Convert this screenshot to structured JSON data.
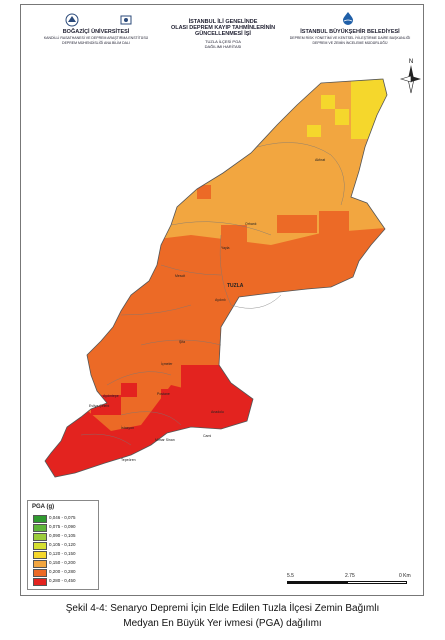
{
  "header": {
    "left_title": "BOĞAZİÇİ ÜNİVERSİTESİ",
    "left_sub1": "KANDİLLİ RASATHANESİ VE DEPREM ARAŞTIRMA ENSTİTÜSÜ",
    "left_sub2": "DEPREM MÜHENDİSLİĞİ ANA BİLİM DALI",
    "center_title1": "İSTANBUL İLİ GENELİNDE",
    "center_title2": "OLASI DEPREM KAYIP TAHMİNLERİNİN",
    "center_title3": "GÜNCELLENMESİ İŞİ",
    "center_sub1": "TUZLA İLÇESİ PGA",
    "center_sub2": "DAĞILIMI HARİTASI",
    "right_title": "İSTANBUL BÜYÜKŞEHİR BELEDİYESİ",
    "right_sub1": "DEPREM RİSK YÖNETİMİ VE KENTSEL İYİLEŞTİRME DAİRE BAŞKANLIĞI",
    "right_sub2": "DEPREM VE ZEMİN İNCELEME MÜDÜRLÜĞÜ"
  },
  "map": {
    "district_label": "TUZLA",
    "places": [
      "Akfırat",
      "Orhanlı",
      "Yayla",
      "Mescit",
      "Aydınlı",
      "Şifa",
      "İçmeler",
      "Aydıntepe",
      "Postane",
      "Evliya Çelebi",
      "İstasyon",
      "Mimar Sinan",
      "Cami",
      "Anadolu",
      "Tepeören"
    ]
  },
  "legend": {
    "title": "PGA (g)",
    "items": [
      {
        "label": "0,046 - 0,075",
        "color": "#2f9a2f"
      },
      {
        "label": "0,075 - 0,090",
        "color": "#5fb53a"
      },
      {
        "label": "0,090 - 0,105",
        "color": "#9ccc3b"
      },
      {
        "label": "0,105 - 0,120",
        "color": "#d6e030"
      },
      {
        "label": "0,120 - 0,150",
        "color": "#f5d72c"
      },
      {
        "label": "0,150 - 0,200",
        "color": "#f2a640"
      },
      {
        "label": "0,200 - 0,280",
        "color": "#ec6a26"
      },
      {
        "label": "0,280 - 0,450",
        "color": "#e3231f"
      }
    ]
  },
  "scale_bar": {
    "left": "5.5",
    "mid": "2.75",
    "right": "0 Km"
  },
  "north_label": "N",
  "caption": {
    "line1": "Şekil 4-4: Senaryo Depremi İçin Elde Edilen Tuzla İlçesi Zemin Bağımlı",
    "line2": "Medyan En Büyük Yer ivmesi (PGA) dağılımı"
  }
}
